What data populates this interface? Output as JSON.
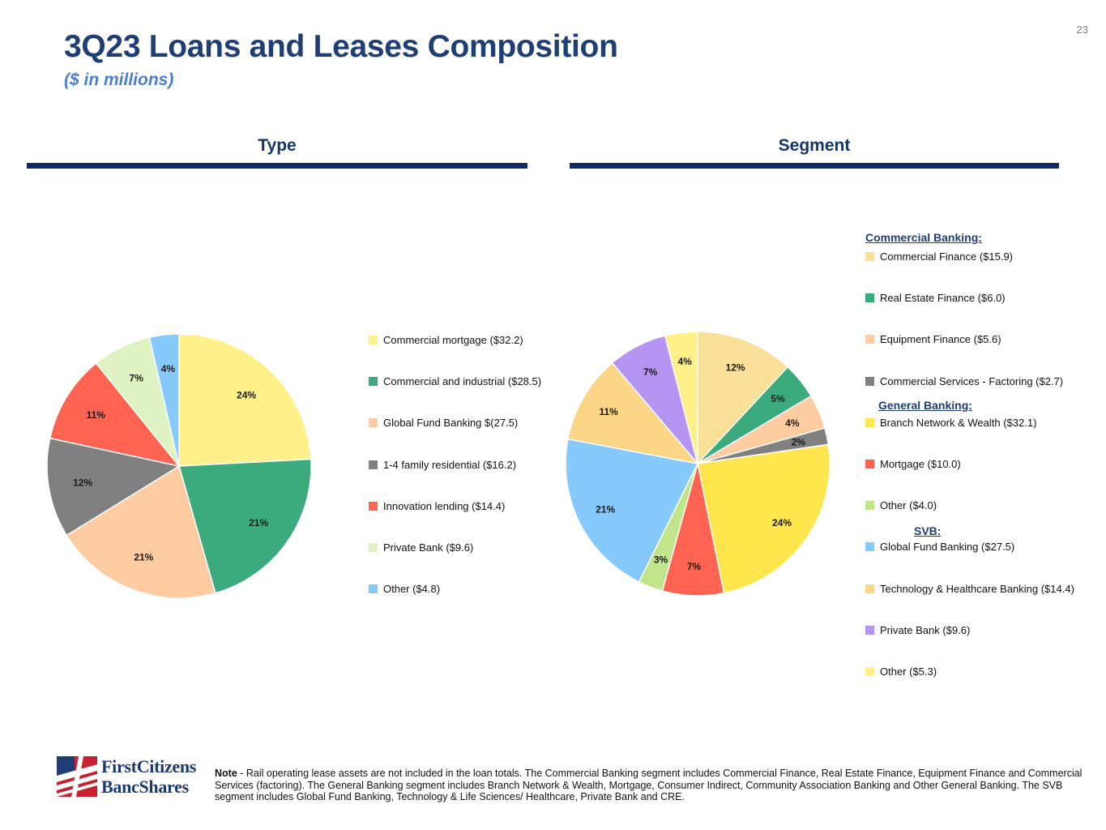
{
  "page_number": "23",
  "title": "3Q23 Loans and Leases Composition",
  "subtitle": "($ in millions)",
  "colors": {
    "title": "#1f3f74",
    "subtitle": "#4a7fc9",
    "rule": "#0d2b67"
  },
  "footer": {
    "logo_line1": "FirstCitizens",
    "logo_line2": "BancShares",
    "note_label": "Note",
    "note_text": "- Rail operating lease assets are not included in the loan totals. The Commercial Banking segment includes Commercial Finance, Real Estate Finance, Equipment Finance and Commercial Services (factoring). The General Banking segment includes Branch Network & Wealth, Mortgage, Consumer Indirect, Community Association Banking and Other General Banking. The SVB segment includes Global Fund Banking, Technology & Life Sciences/ Healthcare, Private Bank and CRE."
  },
  "chart_data": [
    {
      "type": "pie",
      "title": "Type",
      "categories": [
        "Commercial mortgage ($32.2)",
        "Commercial and industrial ($28.5)",
        "Global Fund Banking $(27.5)",
        "1-4 family residential ($16.2)",
        "Innovation lending  ($14.4)",
        "Private Bank ($9.6)",
        "Other  ($4.8)"
      ],
      "values": [
        32.2,
        28.5,
        27.5,
        16.2,
        14.4,
        9.6,
        4.8
      ],
      "data_labels": [
        "24%",
        "21%",
        "21%",
        "12%",
        "11%",
        "7%",
        "4%"
      ],
      "colors": [
        "#fff08a",
        "#3bab7e",
        "#ffcba1",
        "#808080",
        "#ff6452",
        "#dff2c2",
        "#86c9fc"
      ]
    },
    {
      "type": "pie",
      "title": "Segment",
      "categories": [
        "Commercial Finance ($15.9)",
        "Real Estate Finance ($6.0)",
        "Equipment Finance ($5.6)",
        "Commercial Services - Factoring ($2.7)",
        "Branch Network & Wealth ($32.1)",
        "Mortgage ($10.0)",
        "Other ($4.0)",
        "Global Fund Banking ($27.5)",
        "Technology & Healthcare Banking ($14.4)",
        "Private Bank ($9.6)",
        "Other ($5.3)"
      ],
      "values": [
        15.9,
        6.0,
        5.6,
        2.7,
        32.1,
        10.0,
        4.0,
        27.5,
        14.4,
        9.6,
        5.3
      ],
      "data_labels": [
        "12%",
        "5%",
        "4%",
        "2%",
        "24%",
        "7%",
        "3%",
        "21%",
        "11%",
        "7%",
        "4%"
      ],
      "colors": [
        "#f9df98",
        "#3bab7e",
        "#ffcba1",
        "#808080",
        "#ffe64d",
        "#ff6452",
        "#c1e58a",
        "#86c9fc",
        "#fbd687",
        "#b694f1",
        "#fff08a"
      ],
      "groups": [
        {
          "name": "Commercial Banking:",
          "start": 0
        },
        {
          "name": "General Banking:",
          "start": 4
        },
        {
          "name": "SVB:",
          "start": 7
        }
      ]
    }
  ]
}
